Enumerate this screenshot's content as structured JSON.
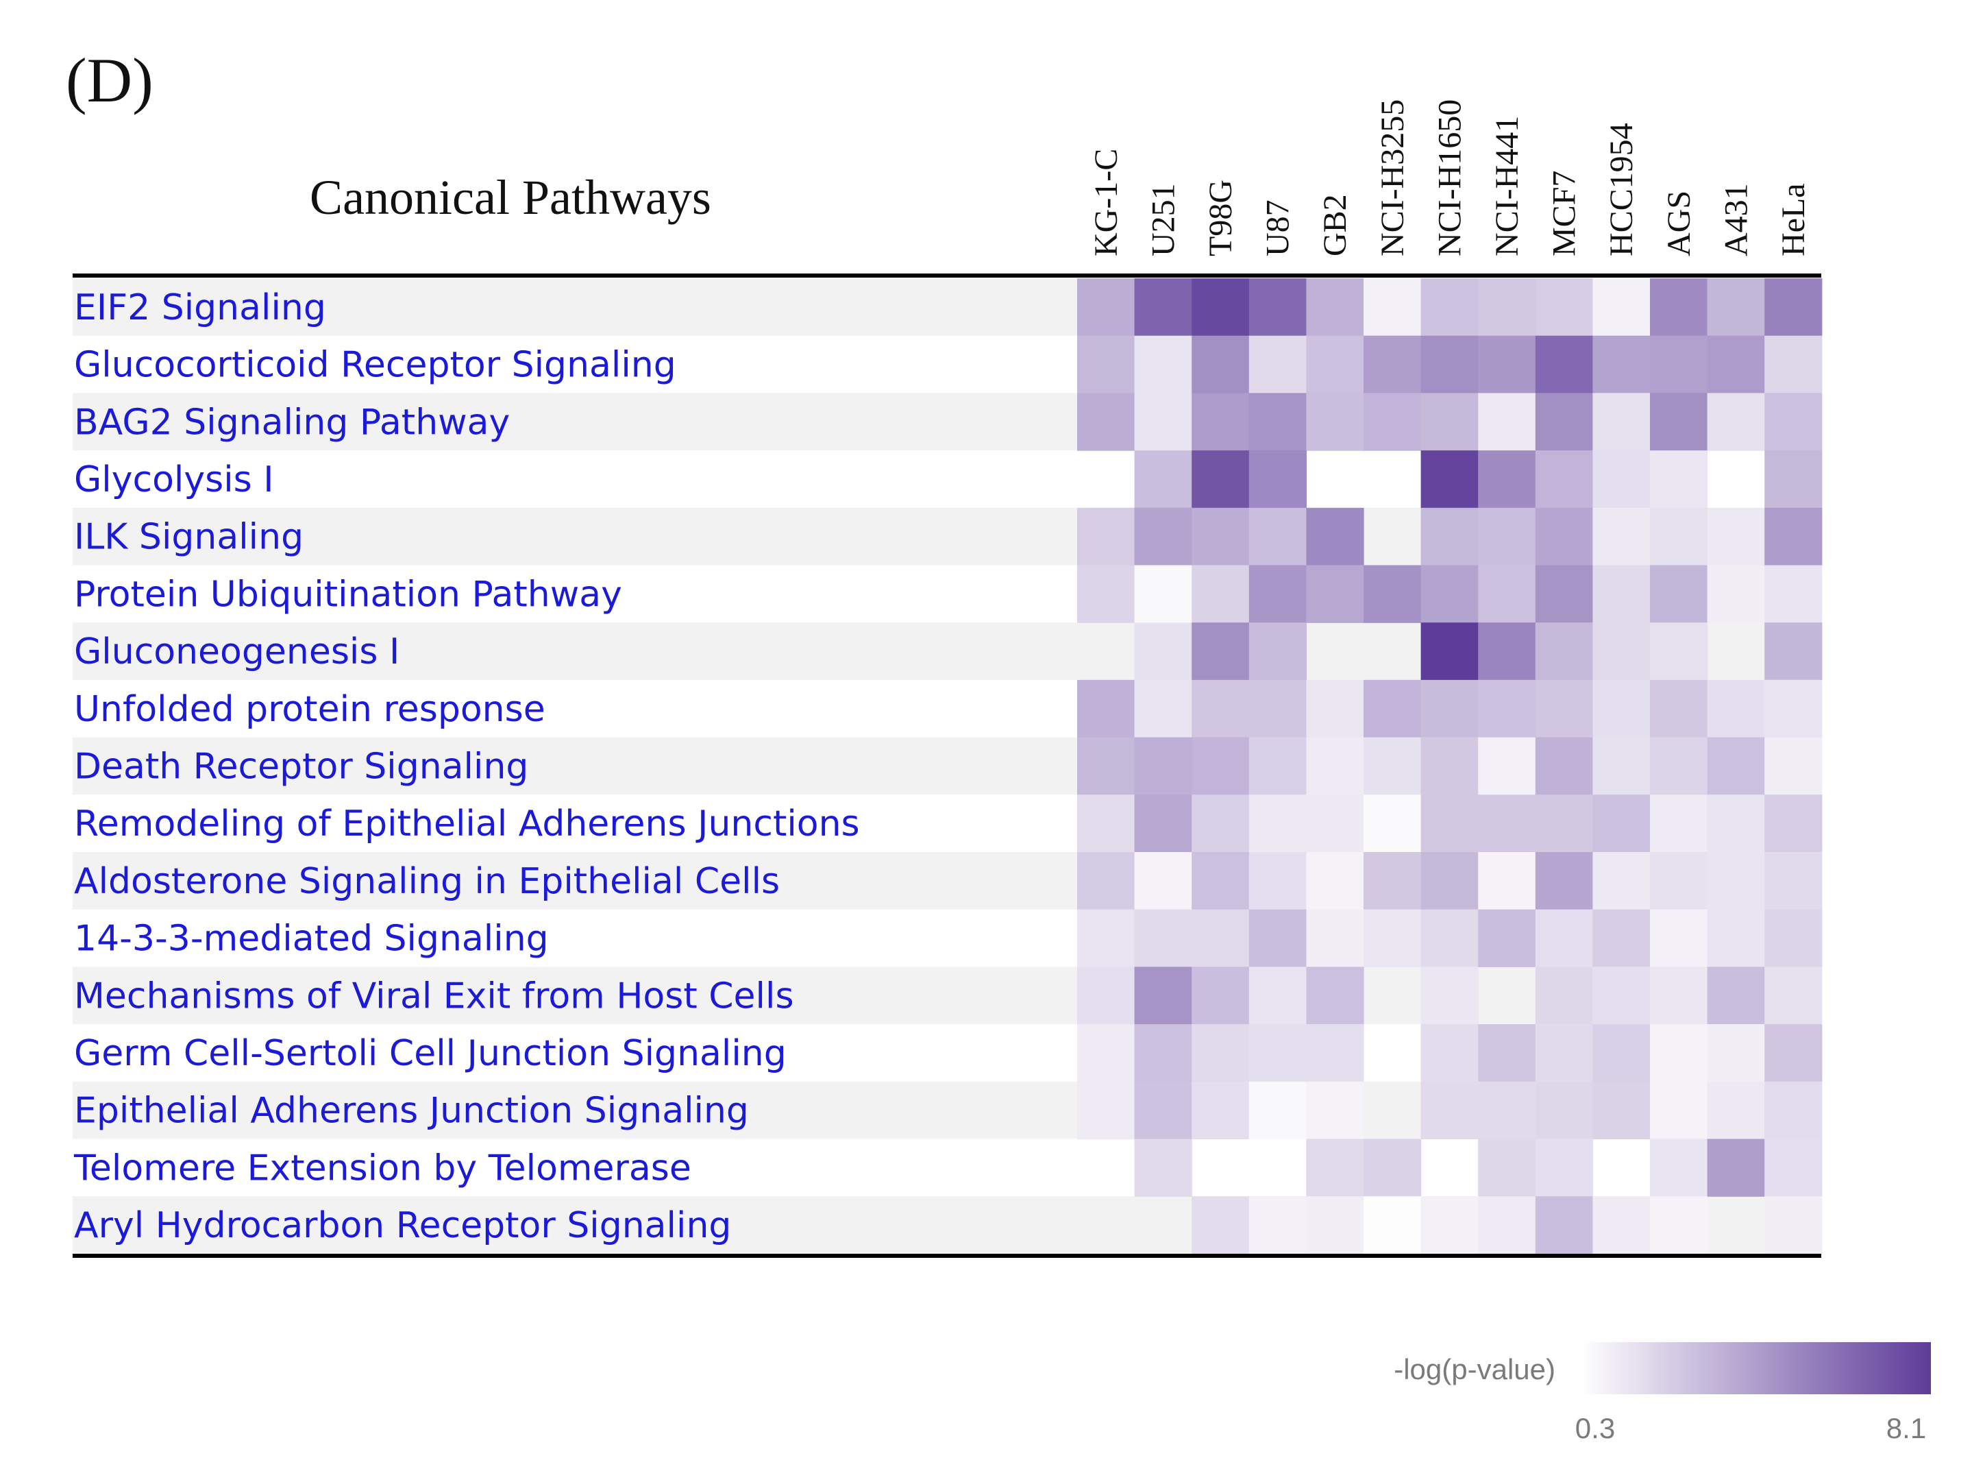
{
  "panel_label": "(D)",
  "chart_data": {
    "type": "heatmap",
    "title": "Canonical Pathways",
    "columns": [
      "KG-1-C",
      "U251",
      "T98G",
      "U87",
      "GB2",
      "NCI-H3255",
      "NCI-H1650",
      "NCI-H441",
      "MCF7",
      "HCC1954",
      "AGS",
      "A431",
      "HeLa"
    ],
    "rows": [
      "EIF2 Signaling",
      "Glucocorticoid Receptor Signaling",
      "BAG2 Signaling Pathway",
      "Glycolysis I",
      "ILK Signaling",
      "Protein Ubiquitination Pathway",
      "Gluconeogenesis I",
      "Unfolded protein response",
      "Death Receptor Signaling",
      "Remodeling of Epithelial Adherens Junctions",
      "Aldosterone Signaling in Epithelial Cells",
      "14-3-3-mediated Signaling",
      "Mechanisms of Viral Exit from Host Cells",
      "Germ Cell-Sertoli Cell Junction Signaling",
      "Epithelial Adherens Junction Signaling",
      "Telomere Extension by Telomerase",
      "Aryl Hydrocarbon Receptor Signaling"
    ],
    "values": [
      [
        3.6,
        6.6,
        7.6,
        6.3,
        3.4,
        0.9,
        2.7,
        2.5,
        2.3,
        0.9,
        4.9,
        3.2,
        5.3
      ],
      [
        3.1,
        1.4,
        4.8,
        1.8,
        2.8,
        4.2,
        4.8,
        4.4,
        6.3,
        4.0,
        4.1,
        4.3,
        1.9
      ],
      [
        3.6,
        1.4,
        4.3,
        4.6,
        2.9,
        3.3,
        3.1,
        1.2,
        4.8,
        1.5,
        4.8,
        1.5,
        2.8
      ],
      [
        null,
        2.9,
        7.1,
        5.0,
        null,
        null,
        7.8,
        4.9,
        3.3,
        1.6,
        1.3,
        null,
        3.1
      ],
      [
        2.3,
        4.0,
        3.6,
        2.9,
        5.0,
        null,
        3.1,
        2.9,
        3.9,
        1.2,
        1.5,
        1.2,
        4.3
      ],
      [
        2.0,
        0.6,
        2.1,
        4.5,
        3.8,
        4.7,
        4.0,
        2.8,
        4.6,
        1.8,
        3.2,
        1.0,
        1.4
      ],
      [
        null,
        1.5,
        4.8,
        3.0,
        null,
        null,
        8.1,
        5.2,
        3.1,
        1.8,
        1.5,
        null,
        3.2
      ],
      [
        3.4,
        1.4,
        2.6,
        2.6,
        1.3,
        3.3,
        3.0,
        2.8,
        2.6,
        1.6,
        2.5,
        1.6,
        1.4
      ],
      [
        3.1,
        3.5,
        3.3,
        2.2,
        1.1,
        1.5,
        2.5,
        0.9,
        3.4,
        1.5,
        2.0,
        2.8,
        1.0
      ],
      [
        1.7,
        3.8,
        2.2,
        1.2,
        1.2,
        0.5,
        2.5,
        2.5,
        2.5,
        2.8,
        1.1,
        1.4,
        2.3
      ],
      [
        2.4,
        0.8,
        2.8,
        1.6,
        0.8,
        2.5,
        3.1,
        0.8,
        3.9,
        1.2,
        1.5,
        1.4,
        1.8
      ],
      [
        1.4,
        1.8,
        1.8,
        2.9,
        1.0,
        1.3,
        1.8,
        2.9,
        1.6,
        2.3,
        0.9,
        1.4,
        2.0
      ],
      [
        1.6,
        4.6,
        2.9,
        1.4,
        2.8,
        null,
        1.3,
        null,
        1.9,
        1.6,
        1.3,
        2.9,
        1.5
      ],
      [
        1.1,
        2.8,
        1.8,
        1.6,
        1.6,
        null,
        1.7,
        2.6,
        1.8,
        2.2,
        0.8,
        1.0,
        2.6
      ],
      [
        1.1,
        2.7,
        1.6,
        0.6,
        0.8,
        null,
        1.8,
        1.8,
        1.9,
        2.1,
        0.8,
        1.2,
        1.7
      ],
      [
        null,
        1.8,
        null,
        null,
        1.8,
        2.1,
        null,
        1.9,
        1.6,
        null,
        1.4,
        4.2,
        1.6
      ],
      [
        null,
        null,
        1.7,
        0.9,
        1.0,
        0.4,
        0.9,
        1.1,
        2.9,
        1.1,
        0.8,
        null,
        1.0
      ]
    ],
    "legend": {
      "label": "-log(p-value)",
      "min_label": "0.3",
      "max_label": "8.1",
      "min": 0.3,
      "max": 8.1,
      "color_low": "#ffffff",
      "color_high": "#5e3c99"
    },
    "row_label_color": "#1a1ad8",
    "stripe_color": "#f2f2f2"
  }
}
